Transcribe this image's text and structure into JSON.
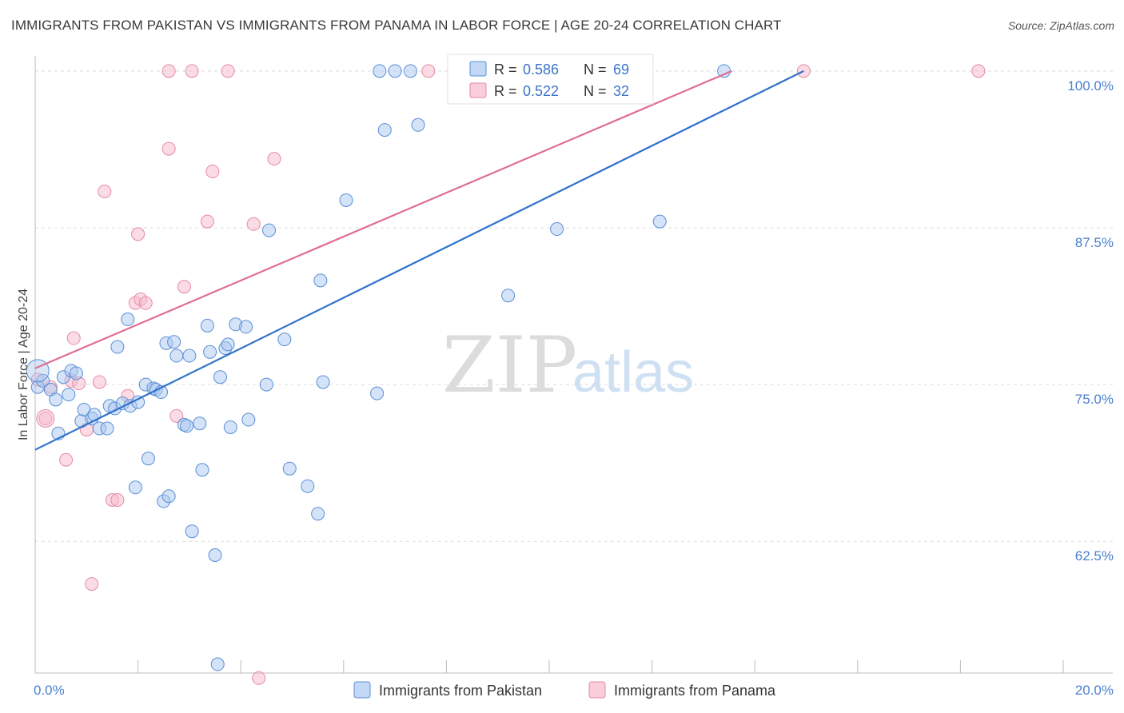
{
  "title": "IMMIGRANTS FROM PAKISTAN VS IMMIGRANTS FROM PANAMA IN LABOR FORCE | AGE 20-24 CORRELATION CHART",
  "source": "Source: ZipAtlas.com",
  "watermark": {
    "zip": "ZIP",
    "atlas": "atlas"
  },
  "colors": {
    "pakistan_fill": "#aac8ef",
    "pakistan_stroke": "#5b8fd6",
    "pakistan_line": "#2f72cc",
    "panama_fill": "#f7b9cb",
    "panama_stroke": "#e58aa6",
    "panama_line": "#e06d95",
    "tick_text": "#4a7fd0",
    "grid": "#dddddd"
  },
  "legend": {
    "pakistan": {
      "r_label": "R =",
      "r_value": "0.586",
      "n_label": "N =",
      "n_value": "69"
    },
    "panama": {
      "r_label": "R =",
      "r_value": "0.522",
      "n_label": "N =",
      "n_value": "32"
    }
  },
  "chart_data": {
    "type": "scatter",
    "title": "IMMIGRANTS FROM PAKISTAN VS IMMIGRANTS FROM PANAMA IN LABOR FORCE | AGE 20-24 CORRELATION CHART",
    "xlabel": "",
    "ylabel": "In Labor Force | Age 20-24",
    "xlim": [
      0,
      20
    ],
    "ylim": [
      52,
      101.2
    ],
    "x_tick_labels": [
      "0.0%",
      "20.0%"
    ],
    "y_ticks": [
      62.5,
      75.0,
      87.5,
      100.0
    ],
    "y_tick_labels": [
      "62.5%",
      "75.0%",
      "87.5%",
      "100.0%"
    ],
    "legend_position": "top-center",
    "series": [
      {
        "name": "Immigrants from Pakistan",
        "trend": {
          "x": [
            0,
            14.95
          ],
          "y": [
            69.8,
            100.0
          ]
        },
        "points": [
          [
            0.05,
            74.8
          ],
          [
            0.15,
            75.3
          ],
          [
            0.3,
            74.6
          ],
          [
            0.4,
            73.8
          ],
          [
            0.45,
            71.1
          ],
          [
            0.55,
            75.6
          ],
          [
            0.65,
            74.2
          ],
          [
            0.7,
            76.1
          ],
          [
            0.8,
            75.9
          ],
          [
            0.9,
            72.1
          ],
          [
            0.95,
            73.0
          ],
          [
            1.1,
            72.3
          ],
          [
            1.15,
            72.6
          ],
          [
            1.25,
            71.5
          ],
          [
            1.4,
            71.5
          ],
          [
            1.45,
            73.3
          ],
          [
            1.55,
            73.1
          ],
          [
            1.6,
            78.0
          ],
          [
            1.7,
            73.5
          ],
          [
            1.8,
            80.2
          ],
          [
            1.85,
            73.3
          ],
          [
            1.95,
            66.8
          ],
          [
            2.0,
            73.6
          ],
          [
            2.15,
            75.0
          ],
          [
            2.2,
            69.1
          ],
          [
            2.3,
            74.7
          ],
          [
            2.35,
            74.6
          ],
          [
            2.45,
            74.4
          ],
          [
            2.5,
            65.7
          ],
          [
            2.55,
            78.3
          ],
          [
            2.6,
            66.1
          ],
          [
            2.7,
            78.4
          ],
          [
            2.75,
            77.3
          ],
          [
            2.9,
            71.8
          ],
          [
            2.95,
            71.7
          ],
          [
            3.0,
            77.3
          ],
          [
            3.05,
            63.3
          ],
          [
            3.2,
            71.9
          ],
          [
            3.25,
            68.2
          ],
          [
            3.35,
            79.7
          ],
          [
            3.4,
            77.6
          ],
          [
            3.5,
            61.4
          ],
          [
            3.55,
            52.7
          ],
          [
            3.7,
            77.9
          ],
          [
            3.75,
            78.2
          ],
          [
            3.8,
            71.6
          ],
          [
            3.9,
            79.8
          ],
          [
            4.1,
            79.6
          ],
          [
            4.15,
            72.2
          ],
          [
            4.5,
            75.0
          ],
          [
            4.55,
            87.3
          ],
          [
            4.85,
            78.6
          ],
          [
            4.95,
            68.3
          ],
          [
            5.3,
            66.9
          ],
          [
            5.55,
            83.3
          ],
          [
            5.5,
            64.7
          ],
          [
            6.05,
            89.7
          ],
          [
            6.65,
            74.3
          ],
          [
            6.7,
            100.0
          ],
          [
            6.8,
            95.3
          ],
          [
            7.0,
            100.0
          ],
          [
            7.3,
            100.0
          ],
          [
            7.45,
            95.7
          ],
          [
            9.2,
            82.1
          ],
          [
            10.15,
            87.4
          ],
          [
            12.15,
            88.0
          ],
          [
            13.4,
            100.0
          ],
          [
            5.6,
            75.2
          ],
          [
            3.6,
            75.6
          ]
        ]
      },
      {
        "name": "Immigrants from Panama",
        "trend": {
          "x": [
            0,
            13.55
          ],
          "y": [
            76.3,
            100.0
          ]
        },
        "points": [
          [
            0.05,
            75.4
          ],
          [
            0.2,
            72.3
          ],
          [
            0.3,
            74.8
          ],
          [
            0.6,
            69.0
          ],
          [
            0.7,
            75.3
          ],
          [
            0.75,
            78.7
          ],
          [
            0.85,
            75.1
          ],
          [
            1.0,
            71.4
          ],
          [
            1.1,
            59.1
          ],
          [
            1.25,
            75.2
          ],
          [
            1.35,
            90.4
          ],
          [
            1.5,
            65.8
          ],
          [
            1.6,
            65.8
          ],
          [
            1.8,
            74.1
          ],
          [
            1.95,
            81.5
          ],
          [
            2.0,
            87.0
          ],
          [
            2.05,
            81.8
          ],
          [
            2.15,
            81.5
          ],
          [
            2.6,
            100.0
          ],
          [
            2.6,
            93.8
          ],
          [
            2.75,
            72.5
          ],
          [
            2.9,
            82.8
          ],
          [
            3.05,
            100.0
          ],
          [
            3.35,
            88.0
          ],
          [
            3.45,
            92.0
          ],
          [
            3.75,
            100.0
          ],
          [
            4.25,
            87.8
          ],
          [
            4.35,
            51.6
          ],
          [
            4.65,
            93.0
          ],
          [
            7.65,
            100.0
          ],
          [
            14.95,
            100.0
          ],
          [
            18.35,
            100.0
          ]
        ]
      }
    ]
  },
  "bottom_legend": {
    "pakistan": "Immigrants from Pakistan",
    "panama": "Immigrants from Panama"
  }
}
